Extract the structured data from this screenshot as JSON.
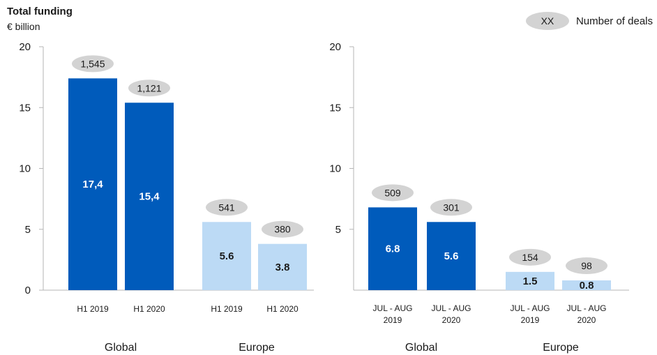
{
  "header": {
    "title": "Total funding",
    "unit": "€ billion"
  },
  "legend": {
    "symbol": "XX",
    "label": "Number of deals",
    "oval_color": "#d3d3d3"
  },
  "colors": {
    "global": "#005bbb",
    "europe": "#bcdaf5",
    "axis": "#b5b5b5"
  },
  "chart_data": [
    {
      "type": "bar",
      "ylim": [
        0,
        20
      ],
      "yticks": [
        "0",
        "5",
        "10",
        "15",
        "20"
      ],
      "groups": [
        {
          "name": "Global",
          "bars": [
            {
              "category": "H1 2019",
              "value": 17.4,
              "value_label": "17,4",
              "deals": "1,545"
            },
            {
              "category": "H1 2020",
              "value": 15.4,
              "value_label": "15,4",
              "deals": "1,121"
            }
          ]
        },
        {
          "name": "Europe",
          "bars": [
            {
              "category": "H1 2019",
              "value": 5.6,
              "value_label": "5.6",
              "deals": "541"
            },
            {
              "category": "H1 2020",
              "value": 3.8,
              "value_label": "3.8",
              "deals": "380"
            }
          ]
        }
      ]
    },
    {
      "type": "bar",
      "ylim": [
        0,
        20
      ],
      "yticks": [
        "5",
        "10",
        "15",
        "20"
      ],
      "groups": [
        {
          "name": "Global",
          "bars": [
            {
              "category": [
                "JUL - AUG",
                "2019"
              ],
              "value": 6.8,
              "value_label": "6.8",
              "deals": "509"
            },
            {
              "category": [
                "JUL - AUG",
                "2020"
              ],
              "value": 5.6,
              "value_label": "5.6",
              "deals": "301"
            }
          ]
        },
        {
          "name": "Europe",
          "bars": [
            {
              "category": [
                "JUL - AUG",
                "2019"
              ],
              "value": 1.5,
              "value_label": "1.5",
              "deals": "154"
            },
            {
              "category": [
                "JUL - AUG",
                "2020"
              ],
              "value": 0.8,
              "value_label": "0.8",
              "deals": "98"
            }
          ]
        }
      ]
    }
  ]
}
